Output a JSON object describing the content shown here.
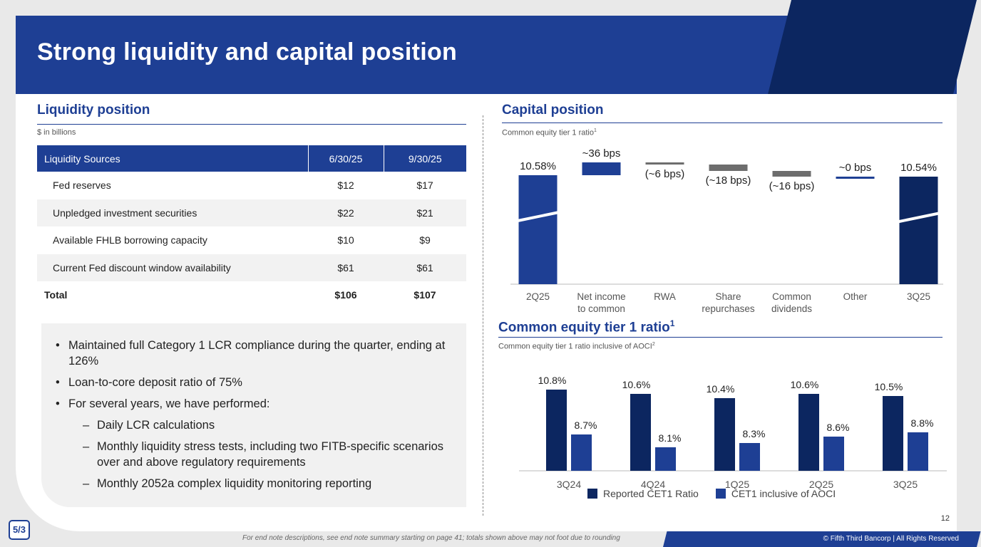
{
  "title": "Strong liquidity and capital position",
  "liquidity": {
    "heading": "Liquidity position",
    "subtitle": "$ in billions",
    "columns": [
      "Liquidity Sources",
      "6/30/25",
      "9/30/25"
    ],
    "rows": [
      {
        "label": "Fed reserves",
        "q2": "$12",
        "q3": "$17"
      },
      {
        "label": "Unpledged investment securities",
        "q2": "$22",
        "q3": "$21"
      },
      {
        "label": "Available FHLB borrowing capacity",
        "q2": "$10",
        "q3": "$9"
      },
      {
        "label": "Current Fed discount window availability",
        "q2": "$61",
        "q3": "$61"
      }
    ],
    "total": {
      "label": "Total",
      "q2": "$106",
      "q3": "$107"
    }
  },
  "bullets": [
    {
      "text": "Maintained full Category 1 LCR compliance during the quarter, ending at 126%",
      "level": 1
    },
    {
      "text": "Loan-to-core deposit ratio of 75%",
      "level": 1
    },
    {
      "text": "For several years, we have performed:",
      "level": 1
    },
    {
      "text": "Daily LCR calculations",
      "level": 2
    },
    {
      "text": "Monthly liquidity stress tests, including two FITB-specific scenarios over and above regulatory requirements",
      "level": 2
    },
    {
      "text": "Monthly 2052a complex liquidity monitoring reporting",
      "level": 2
    }
  ],
  "capital": {
    "heading": "Capital position",
    "subtitle": "Common equity tier 1 ratio",
    "subtitle_sup": "1"
  },
  "cet1": {
    "heading": "Common equity tier 1 ratio",
    "heading_sup": "1",
    "subtitle": "Common equity tier 1 ratio inclusive of AOCI",
    "subtitle_sup": "2"
  },
  "colors": {
    "primary": "#1e3f94",
    "dark": "#0c2660",
    "gray": "#6d6d6d"
  },
  "chart_data": [
    {
      "type": "waterfall",
      "categories": [
        "2Q25",
        "Net income to common",
        "RWA",
        "Share repurchases",
        "Common dividends",
        "Other",
        "3Q25"
      ],
      "values": [
        10.58,
        0.36,
        -0.06,
        -0.18,
        -0.16,
        0.0,
        10.54
      ],
      "labels": [
        "10.58%",
        "~36 bps",
        "(~6 bps)",
        "(~18 bps)",
        "(~16 bps)",
        "~0 bps",
        "10.54%"
      ],
      "kinds": [
        "total",
        "increase",
        "decrease",
        "decrease",
        "decrease",
        "neutral",
        "total"
      ]
    },
    {
      "type": "bar",
      "categories": [
        "3Q24",
        "4Q24",
        "1Q25",
        "2Q25",
        "3Q25"
      ],
      "series": [
        {
          "name": "Reported CET1 Ratio",
          "values": [
            10.8,
            10.6,
            10.4,
            10.6,
            10.5
          ],
          "labels": [
            "10.8%",
            "10.6%",
            "10.4%",
            "10.6%",
            "10.5%"
          ],
          "color": "#0c2660"
        },
        {
          "name": "CET1 inclusive of AOCI",
          "values": [
            8.7,
            8.1,
            8.3,
            8.6,
            8.8
          ],
          "labels": [
            "8.7%",
            "8.1%",
            "8.3%",
            "8.6%",
            "8.8%"
          ],
          "color": "#1e3f94"
        }
      ],
      "legend": "bottom"
    }
  ],
  "page_number": "12",
  "logo_text": "5/3",
  "footer_note": "For end note descriptions, see end note summary starting on page 41; totals shown above may not foot due to rounding",
  "copyright": "© Fifth Third Bancorp | All Rights Reserved"
}
